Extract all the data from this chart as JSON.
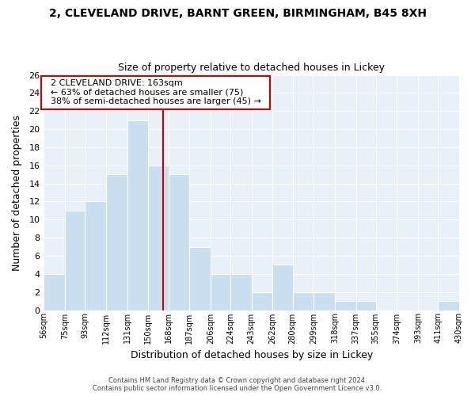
{
  "title_line1": "2, CLEVELAND DRIVE, BARNT GREEN, BIRMINGHAM, B45 8XH",
  "title_line2": "Size of property relative to detached houses in Lickey",
  "xlabel": "Distribution of detached houses by size in Lickey",
  "ylabel": "Number of detached properties",
  "bar_color": "#c9dff0",
  "bar_edge_color": "#ffffff",
  "background_color": "#ffffff",
  "plot_bg_color": "#e8f0f8",
  "grid_color": "#ffffff",
  "bins": [
    56,
    75,
    93,
    112,
    131,
    150,
    168,
    187,
    206,
    224,
    243,
    262,
    280,
    299,
    318,
    337,
    355,
    374,
    393,
    411,
    430
  ],
  "counts": [
    4,
    11,
    12,
    15,
    21,
    16,
    15,
    7,
    4,
    4,
    2,
    5,
    2,
    2,
    1,
    1,
    0,
    0,
    0,
    1
  ],
  "tick_labels": [
    "56sqm",
    "75sqm",
    "93sqm",
    "112sqm",
    "131sqm",
    "150sqm",
    "168sqm",
    "187sqm",
    "206sqm",
    "224sqm",
    "243sqm",
    "262sqm",
    "280sqm",
    "299sqm",
    "318sqm",
    "337sqm",
    "355sqm",
    "374sqm",
    "393sqm",
    "411sqm",
    "430sqm"
  ],
  "ylim": [
    0,
    26
  ],
  "yticks": [
    0,
    2,
    4,
    6,
    8,
    10,
    12,
    14,
    16,
    18,
    20,
    22,
    24,
    26
  ],
  "property_line_x": 163,
  "property_line_color": "#cc0000",
  "annotation_title": "2 CLEVELAND DRIVE: 163sqm",
  "annotation_line1": "← 63% of detached houses are smaller (75)",
  "annotation_line2": "38% of semi-detached houses are larger (45) →",
  "annotation_box_color": "#ffffff",
  "annotation_box_edge": "#cc0000",
  "footer_line1": "Contains HM Land Registry data © Crown copyright and database right 2024.",
  "footer_line2": "Contains public sector information licensed under the Open Government Licence v3.0."
}
